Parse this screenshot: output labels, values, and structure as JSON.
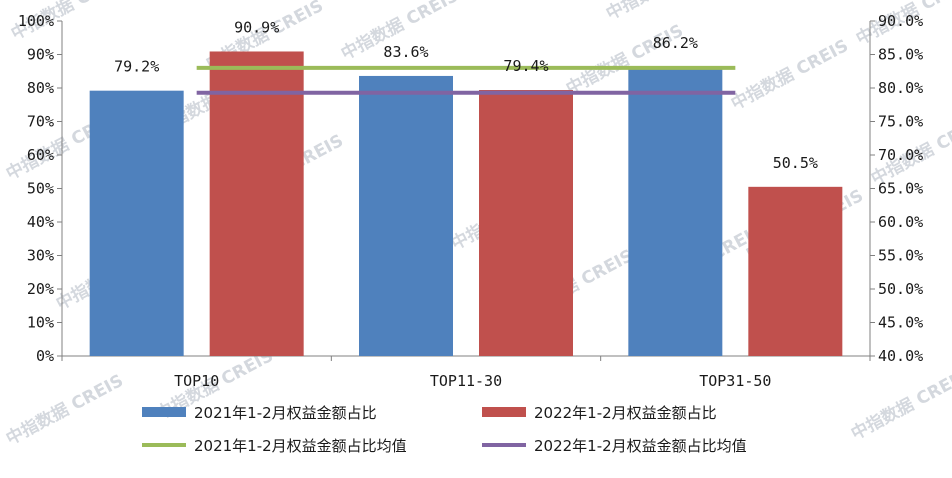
{
  "watermark": "中指数据 CREIS",
  "chart_data": {
    "type": "bar",
    "categories": [
      "TOP10",
      "TOP11-30",
      "TOP31-50"
    ],
    "series": [
      {
        "name": "2021年1-2月权益金额占比",
        "type": "bar",
        "axis": "left",
        "color": "#4f81bd",
        "values": [
          79.2,
          83.6,
          86.2
        ],
        "labels": [
          "79.2%",
          "83.6%",
          "86.2%"
        ]
      },
      {
        "name": "2022年1-2月权益金额占比",
        "type": "bar",
        "axis": "left",
        "color": "#c0504d",
        "values": [
          90.9,
          79.4,
          50.5
        ],
        "labels": [
          "90.9%",
          "79.4%",
          "50.5%"
        ]
      },
      {
        "name": "2021年1-2月权益金额占比均值",
        "type": "line",
        "axis": "right",
        "color": "#9bbb59",
        "values": [
          83.0,
          83.0,
          83.0
        ]
      },
      {
        "name": "2022年1-2月权益金额占比均值",
        "type": "line",
        "axis": "right",
        "color": "#8064a2",
        "values": [
          79.3,
          79.3,
          79.3
        ]
      }
    ],
    "y_left": {
      "min": 0,
      "max": 100,
      "step": 10,
      "ticks": [
        "0%",
        "10%",
        "20%",
        "30%",
        "40%",
        "50%",
        "60%",
        "70%",
        "80%",
        "90%",
        "100%"
      ]
    },
    "y_right": {
      "min": 40,
      "max": 90,
      "step": 5,
      "ticks": [
        "40.0%",
        "45.0%",
        "50.0%",
        "55.0%",
        "60.0%",
        "65.0%",
        "70.0%",
        "75.0%",
        "80.0%",
        "85.0%",
        "90.0%"
      ]
    },
    "grid": false,
    "legend": "bottom"
  }
}
